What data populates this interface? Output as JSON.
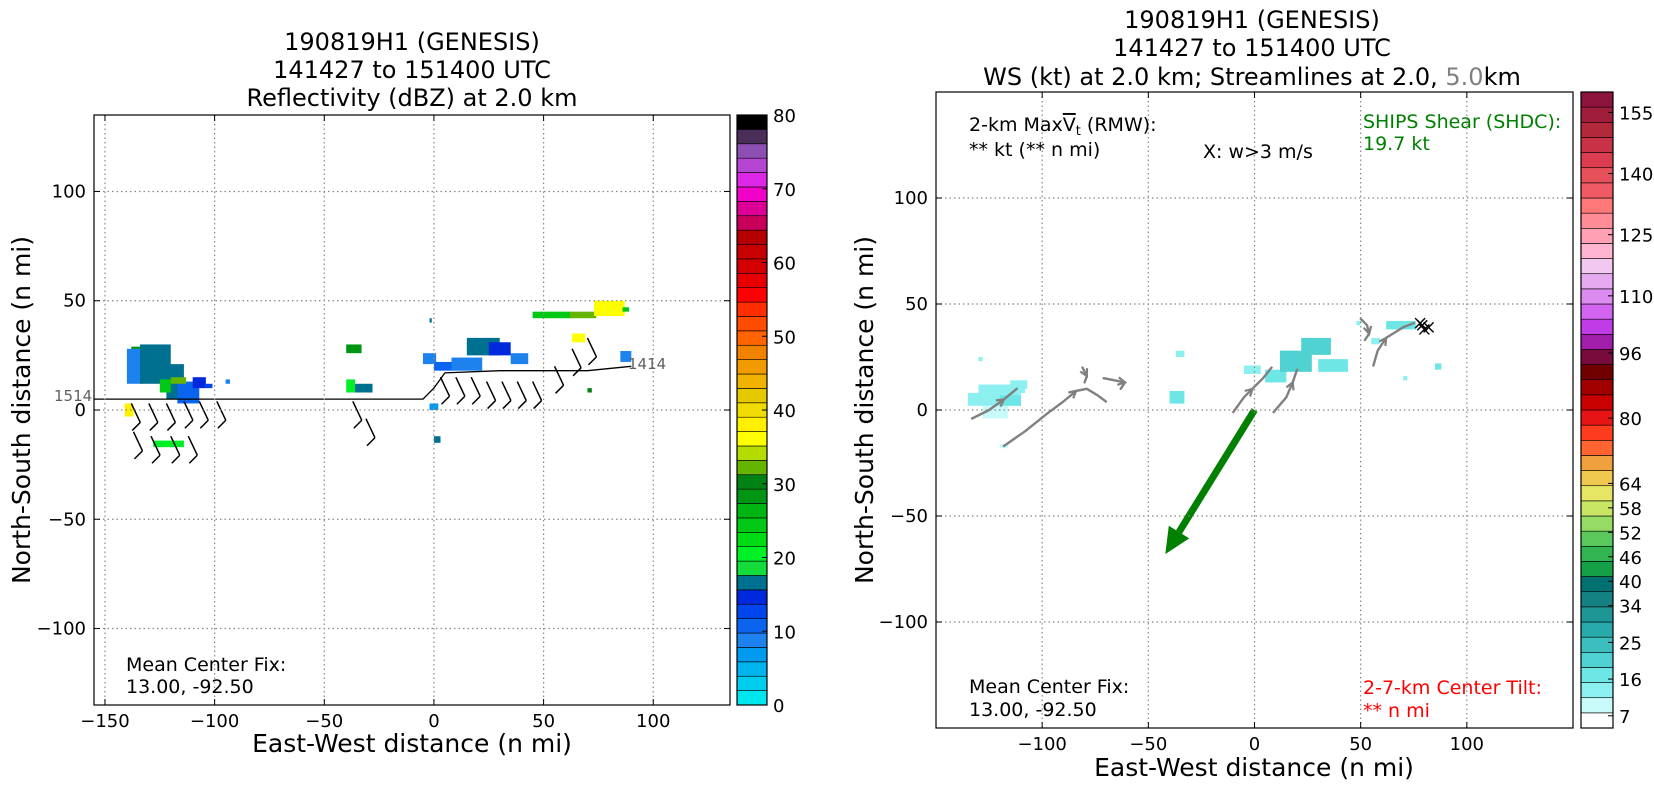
{
  "chart_data": [
    {
      "type": "heatmap",
      "title_lines": [
        "190819H1 (GENESIS)",
        "141427 to 151400 UTC",
        "Reflectivity (dBZ) at 2.0 km"
      ],
      "xlabel": "East-West distance (n mi)",
      "ylabel": "North-South distance (n mi)",
      "xlim": [
        -155,
        135
      ],
      "ylim": [
        -135,
        135
      ],
      "xticks": [
        -150,
        -100,
        -50,
        0,
        50,
        100
      ],
      "xtick_labels": [
        "−150",
        "−100",
        "−50",
        "0",
        "50",
        "100"
      ],
      "yticks": [
        -100,
        -50,
        0,
        50,
        100
      ],
      "ytick_labels": [
        "−100",
        "−50",
        "0",
        "50",
        "100"
      ],
      "grid": true,
      "annotations": {
        "center_fix_label": "Mean Center Fix:",
        "center_fix_value": "13.00, -92.50",
        "track_start_label": "1514",
        "track_end_label": "1414"
      },
      "colorbar": {
        "min": 0,
        "max": 80,
        "step": 2.5,
        "tick_values": [
          0,
          10,
          20,
          30,
          40,
          50,
          60,
          70,
          80
        ],
        "tick_labels": [
          "0",
          "10",
          "20",
          "30",
          "40",
          "50",
          "60",
          "70",
          "80"
        ],
        "colors": [
          "#00e5ee",
          "#00cdee",
          "#00b4ee",
          "#009bee",
          "#1e82ee",
          "#0a64ee",
          "#0046ee",
          "#0028dc",
          "#007090",
          "#14dc3c",
          "#00f028",
          "#00dc14",
          "#00c814",
          "#00b414",
          "#009614",
          "#008214",
          "#64b400",
          "#b4dc00",
          "#ffff00",
          "#fff000",
          "#f0dc00",
          "#e6c800",
          "#f0b400",
          "#f09b00",
          "#f08200",
          "#ff6400",
          "#ff4b00",
          "#ff2d00",
          "#ff0000",
          "#e60000",
          "#d20000",
          "#c80000",
          "#b40000",
          "#c8005a",
          "#dc0096",
          "#f000c8",
          "#dc28e6",
          "#b446d2",
          "#8c50b4",
          "#4b2d5a",
          "#000000"
        ]
      },
      "track": [
        [
          -155,
          5
        ],
        [
          -5,
          5
        ],
        [
          0,
          10
        ],
        [
          5,
          17
        ],
        [
          30,
          18
        ],
        [
          70,
          18
        ],
        [
          90,
          20
        ]
      ],
      "echo_cells": [
        {
          "x": -138,
          "y": 25,
          "w": 6,
          "h": 4,
          "dbz": 35
        },
        {
          "x": -140,
          "y": 12,
          "w": 7,
          "h": 16,
          "dbz": 12
        },
        {
          "x": -134,
          "y": 12,
          "w": 14,
          "h": 18,
          "dbz": 22
        },
        {
          "x": -122,
          "y": 5,
          "w": 8,
          "h": 16,
          "dbz": 20
        },
        {
          "x": -117,
          "y": 3,
          "w": 10,
          "h": 10,
          "dbz": 13
        },
        {
          "x": -110,
          "y": 10,
          "w": 6,
          "h": 5,
          "dbz": 18
        },
        {
          "x": -125,
          "y": 8,
          "w": 5,
          "h": 6,
          "dbz": 30
        },
        {
          "x": -120,
          "y": 12,
          "w": 7,
          "h": 3,
          "dbz": 40
        },
        {
          "x": -141,
          "y": -3,
          "w": 4,
          "h": 6,
          "dbz": 48
        },
        {
          "x": -128,
          "y": -17,
          "w": 14,
          "h": 3,
          "dbz": 25
        },
        {
          "x": -104,
          "y": 10,
          "w": 3,
          "h": 2,
          "dbz": 15
        },
        {
          "x": -95,
          "y": 12,
          "w": 2,
          "h": 2,
          "dbz": 11
        },
        {
          "x": -40,
          "y": 26,
          "w": 7,
          "h": 4,
          "dbz": 37
        },
        {
          "x": -40,
          "y": 8,
          "w": 4,
          "h": 6,
          "dbz": 25
        },
        {
          "x": -36,
          "y": 8,
          "w": 8,
          "h": 4,
          "dbz": 20
        },
        {
          "x": -5,
          "y": 21,
          "w": 6,
          "h": 5,
          "dbz": 10
        },
        {
          "x": 0,
          "y": 18,
          "w": 9,
          "h": 4,
          "dbz": 14
        },
        {
          "x": 8,
          "y": 18,
          "w": 14,
          "h": 6,
          "dbz": 12
        },
        {
          "x": 15,
          "y": 25,
          "w": 15,
          "h": 8,
          "dbz": 22
        },
        {
          "x": 25,
          "y": 25,
          "w": 10,
          "h": 6,
          "dbz": 18
        },
        {
          "x": 35,
          "y": 21,
          "w": 8,
          "h": 5,
          "dbz": 11
        },
        {
          "x": -2,
          "y": 40,
          "w": 1,
          "h": 2,
          "dbz": 20
        },
        {
          "x": -2,
          "y": 0,
          "w": 4,
          "h": 3,
          "dbz": 8
        },
        {
          "x": 0,
          "y": -15,
          "w": 3,
          "h": 3,
          "dbz": 20
        },
        {
          "x": 45,
          "y": 42,
          "w": 18,
          "h": 3,
          "dbz": 30
        },
        {
          "x": 62,
          "y": 42,
          "w": 12,
          "h": 3,
          "dbz": 40
        },
        {
          "x": 73,
          "y": 43,
          "w": 14,
          "h": 7,
          "dbz": 47
        },
        {
          "x": 63,
          "y": 31,
          "w": 6,
          "h": 4,
          "dbz": 45
        },
        {
          "x": 85,
          "y": 22,
          "w": 5,
          "h": 5,
          "dbz": 12
        },
        {
          "x": 70,
          "y": 8,
          "w": 2,
          "h": 2,
          "dbz": 38
        },
        {
          "x": 86,
          "y": 45,
          "w": 3,
          "h": 2,
          "dbz": 32
        }
      ],
      "wind_barbs": [
        [
          -138,
          3
        ],
        [
          -130,
          3
        ],
        [
          -122,
          3
        ],
        [
          -114,
          4
        ],
        [
          -107,
          4
        ],
        [
          -99,
          4
        ],
        [
          -137,
          -10
        ],
        [
          -129,
          -12
        ],
        [
          -120,
          -12
        ],
        [
          -112,
          -12
        ],
        [
          -37,
          4
        ],
        [
          -31,
          -4
        ],
        [
          3,
          15
        ],
        [
          10,
          15
        ],
        [
          17,
          15
        ],
        [
          24,
          13
        ],
        [
          31,
          13
        ],
        [
          38,
          13
        ],
        [
          45,
          13
        ],
        [
          55,
          20
        ],
        [
          63,
          28
        ],
        [
          70,
          33
        ]
      ]
    },
    {
      "type": "heatmap",
      "title_lines": [
        "190819H1 (GENESIS)",
        "141427 to 151400 UTC"
      ],
      "title_line3": {
        "part1": "WS (kt) at 2.0 km; Streamlines at 2.0, ",
        "part2": "5.0",
        "part3": "km"
      },
      "xlabel": "East-West distance (n mi)",
      "ylabel": "North-South distance (n mi)",
      "xlim": [
        -150,
        150
      ],
      "ylim": [
        -150,
        150
      ],
      "xticks": [
        -100,
        -50,
        0,
        50,
        100
      ],
      "xtick_labels": [
        "−100",
        "−50",
        "0",
        "50",
        "100"
      ],
      "yticks": [
        -100,
        -50,
        0,
        50,
        100
      ],
      "ytick_labels": [
        "−100",
        "−50",
        "0",
        "50",
        "100"
      ],
      "grid": true,
      "annotations": {
        "maxvt_line1a": "2-km Max",
        "maxvt_symbol": "V",
        "maxvt_sub": "t",
        "maxvt_line1b": " (RMW):",
        "maxvt_line2": "** kt (** n mi)",
        "wlegend": "X: w>3 m/s",
        "shear_line1": "SHIPS Shear (SHDC):",
        "shear_line2": "19.7 kt",
        "shear_color": "#008000",
        "center_fix_label": "Mean Center Fix:",
        "center_fix_value": "13.00, -92.50",
        "tilt_line1": "2-7-km Center Tilt:",
        "tilt_line2": "** n mi",
        "tilt_color": "#ff0000"
      },
      "shear_vector": {
        "from": [
          0,
          0
        ],
        "to": [
          -42,
          -68
        ],
        "color": "#008000"
      },
      "colorbar": {
        "min": 4,
        "max": 160,
        "step": 3,
        "tick_values": [
          7,
          16,
          25,
          34,
          40,
          46,
          52,
          58,
          64,
          80,
          96,
          110,
          125,
          140,
          155
        ],
        "tick_labels": [
          "7",
          "16",
          "25",
          "34",
          "40",
          "46",
          "52",
          "58",
          "64",
          "80",
          "96",
          "110",
          "125",
          "140",
          "155"
        ],
        "colors": [
          "#ffffff",
          "#c8fafa",
          "#8cf0f0",
          "#6ee6e6",
          "#50d2d2",
          "#3cbebe",
          "#28aaaa",
          "#1e9696",
          "#148282",
          "#007070",
          "#14a046",
          "#32b450",
          "#5ac85a",
          "#96dc64",
          "#c8e664",
          "#e6e664",
          "#f0c850",
          "#f0a03c",
          "#ff6432",
          "#ff3c1e",
          "#e61414",
          "#c80000",
          "#a00000",
          "#700000",
          "#780a3c",
          "#a01eaa",
          "#c03ce6",
          "#d264f0",
          "#dc8cf0",
          "#e6aaf0",
          "#f0c8f0",
          "#ffb4d2",
          "#ffa0b4",
          "#ff8c96",
          "#ff7878",
          "#f05a64",
          "#e6505a",
          "#dc3c50",
          "#c83246",
          "#b4283c",
          "#a01e3c",
          "#8c143c"
        ]
      },
      "wind_cells": [
        {
          "x": -135,
          "y": 2,
          "w": 25,
          "h": 6,
          "kt": 12
        },
        {
          "x": -130,
          "y": 8,
          "w": 22,
          "h": 4,
          "kt": 10
        },
        {
          "x": -128,
          "y": -4,
          "w": 12,
          "h": 6,
          "kt": 9
        },
        {
          "x": -120,
          "y": 2,
          "w": 10,
          "h": 5,
          "kt": 15
        },
        {
          "x": -115,
          "y": 10,
          "w": 8,
          "h": 4,
          "kt": 10
        },
        {
          "x": -130,
          "y": 23,
          "w": 2,
          "h": 2,
          "kt": 10
        },
        {
          "x": -120,
          "y": -18,
          "w": 4,
          "h": 2,
          "kt": 9
        },
        {
          "x": -40,
          "y": 3,
          "w": 7,
          "h": 6,
          "kt": 13
        },
        {
          "x": -37,
          "y": 25,
          "w": 4,
          "h": 3,
          "kt": 12
        },
        {
          "x": -5,
          "y": 17,
          "w": 8,
          "h": 4,
          "kt": 12
        },
        {
          "x": 5,
          "y": 13,
          "w": 10,
          "h": 6,
          "kt": 14
        },
        {
          "x": 12,
          "y": 18,
          "w": 15,
          "h": 10,
          "kt": 16
        },
        {
          "x": 22,
          "y": 26,
          "w": 14,
          "h": 8,
          "kt": 18
        },
        {
          "x": 30,
          "y": 18,
          "w": 14,
          "h": 6,
          "kt": 14
        },
        {
          "x": 55,
          "y": 31,
          "w": 4,
          "h": 3,
          "kt": 12
        },
        {
          "x": 62,
          "y": 38,
          "w": 14,
          "h": 4,
          "kt": 15
        },
        {
          "x": 85,
          "y": 19,
          "w": 3,
          "h": 3,
          "kt": 14
        },
        {
          "x": 70,
          "y": 14,
          "w": 2,
          "h": 2,
          "kt": 12
        },
        {
          "x": 48,
          "y": 40,
          "w": 2,
          "h": 2,
          "kt": 12
        }
      ],
      "streamlines": [
        [
          [
            -133,
            -4
          ],
          [
            -125,
            0
          ],
          [
            -118,
            5
          ],
          [
            -112,
            10
          ]
        ],
        [
          [
            -118,
            -17
          ],
          [
            -108,
            -10
          ],
          [
            -98,
            -2
          ],
          [
            -90,
            4
          ],
          [
            -84,
            9
          ],
          [
            -79,
            10
          ],
          [
            -74,
            7
          ],
          [
            -70,
            4
          ]
        ],
        [
          [
            -81,
            20
          ],
          [
            -79,
            16
          ],
          [
            -80,
            13
          ]
        ],
        [
          [
            -71,
            15
          ],
          [
            -66,
            14
          ],
          [
            -61,
            13
          ],
          [
            -63,
            10
          ]
        ],
        [
          [
            -10,
            -1
          ],
          [
            -5,
            6
          ],
          [
            -1,
            10
          ],
          [
            4,
            15
          ],
          [
            8,
            20
          ]
        ],
        [
          [
            9,
            -1
          ],
          [
            15,
            6
          ],
          [
            18,
            13
          ],
          [
            20,
            19
          ]
        ],
        [
          [
            50,
            43
          ],
          [
            53,
            40
          ],
          [
            54,
            36
          ],
          [
            52,
            33
          ]
        ],
        [
          [
            56,
            21
          ],
          [
            58,
            28
          ],
          [
            62,
            34
          ],
          [
            70,
            39
          ],
          [
            75,
            41
          ]
        ]
      ],
      "updrafts": [
        [
          78,
          41
        ],
        [
          80,
          38
        ],
        [
          82,
          39
        ],
        [
          79,
          40
        ]
      ]
    }
  ]
}
